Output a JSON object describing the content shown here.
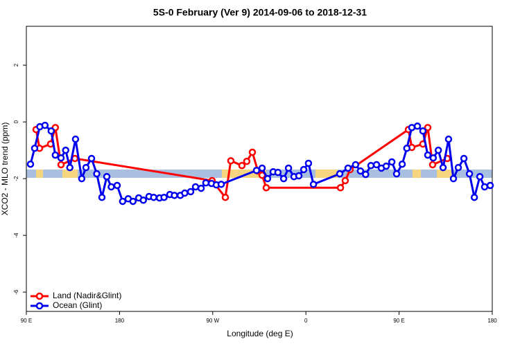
{
  "chart_data": {
    "type": "line",
    "title": "5S-0 February (Ver 9)   2014-09-06 to 2018-12-31",
    "x_label": "Longitude (deg E)",
    "y_label": "XCO2 - MLO trend (ppm)",
    "xlim": [
      90,
      540
    ],
    "ylim": [
      -6.68,
      3.37
    ],
    "xticks": [
      {
        "value": 90,
        "label": "90 E"
      },
      180,
      {
        "value": 270,
        "label": "90 W"
      },
      {
        "value": 360,
        "label": "0"
      },
      {
        "value": 450,
        "label": "90 E"
      },
      {
        "value": 540,
        "label": "180"
      }
    ],
    "yticks": [
      -6,
      -4,
      -2,
      0,
      2
    ],
    "legend": "bottom-left",
    "series": [
      {
        "name": "Land (Nadir&Glint)",
        "color": "#ff0000",
        "x": [
          99.4,
          102.7,
          113.4,
          118,
          123.5,
          136.9,
          269.4,
          282.2,
          287.5,
          298.2,
          302.9,
          308.3,
          313.6,
          317.7,
          321.7,
          393.4,
          398,
          402.7,
          459,
          462.3,
          473,
          477.7,
          482.4,
          496.5
        ],
        "values": [
          -0.27,
          -0.93,
          -0.78,
          -0.2,
          -1.51,
          -1.29,
          -2.07,
          -2.66,
          -1.37,
          -1.54,
          -1.39,
          -1.07,
          -1.73,
          -1.88,
          -2.32,
          -2.32,
          -2.07,
          -1.68,
          -0.27,
          -0.9,
          -0.78,
          -0.2,
          -1.51,
          -1.29
        ]
      },
      {
        "name": "Ocean (Glint)",
        "color": "#0000ee",
        "x": [
          94,
          98,
          103,
          108,
          114,
          118,
          123.5,
          128,
          132,
          137.5,
          143.5,
          147.6,
          153,
          158,
          163,
          167.7,
          172,
          177.7,
          183,
          188.4,
          193,
          198.5,
          203,
          208.5,
          213,
          218.6,
          223,
          228.6,
          233,
          238.7,
          243,
          248.7,
          253.4,
          258.8,
          263.4,
          268.8,
          273.5,
          278.2,
          312.3,
          317.7,
          323,
          328.4,
          333,
          338.5,
          343.2,
          348.5,
          353.2,
          357.9,
          362.5,
          367.3,
          392.7,
          400.7,
          408,
          412.7,
          417.7,
          422.8,
          428.2,
          432.9,
          437.6,
          443,
          447.6,
          453,
          457.5,
          462.3,
          467.7,
          473,
          477.7,
          483,
          487.9,
          492.5,
          497.8,
          502.5,
          507.2,
          512.6,
          518,
          522.7,
          528,
          532.6,
          538
        ],
        "values": [
          -1.49,
          -0.93,
          -0.17,
          -0.12,
          -0.32,
          -1.17,
          -1.27,
          -1.0,
          -1.61,
          -0.61,
          -2.0,
          -1.61,
          -1.29,
          -1.83,
          -2.66,
          -1.93,
          -2.29,
          -2.24,
          -2.8,
          -2.71,
          -2.8,
          -2.68,
          -2.76,
          -2.63,
          -2.66,
          -2.68,
          -2.66,
          -2.56,
          -2.59,
          -2.59,
          -2.51,
          -2.46,
          -2.29,
          -2.34,
          -2.15,
          -2.17,
          -2.22,
          -2.2,
          -1.71,
          -1.63,
          -2.0,
          -1.76,
          -1.78,
          -2.0,
          -1.63,
          -1.93,
          -1.9,
          -1.68,
          -1.46,
          -2.2,
          -1.83,
          -1.63,
          -1.51,
          -1.73,
          -1.85,
          -1.54,
          -1.51,
          -1.63,
          -1.56,
          -1.41,
          -1.83,
          -1.49,
          -0.93,
          -0.2,
          -0.15,
          -0.32,
          -1.17,
          -1.27,
          -1.0,
          -1.61,
          -0.61,
          -2.0,
          -1.61,
          -1.29,
          -1.83,
          -2.66,
          -1.93,
          -2.29,
          -2.24
        ]
      }
    ]
  }
}
